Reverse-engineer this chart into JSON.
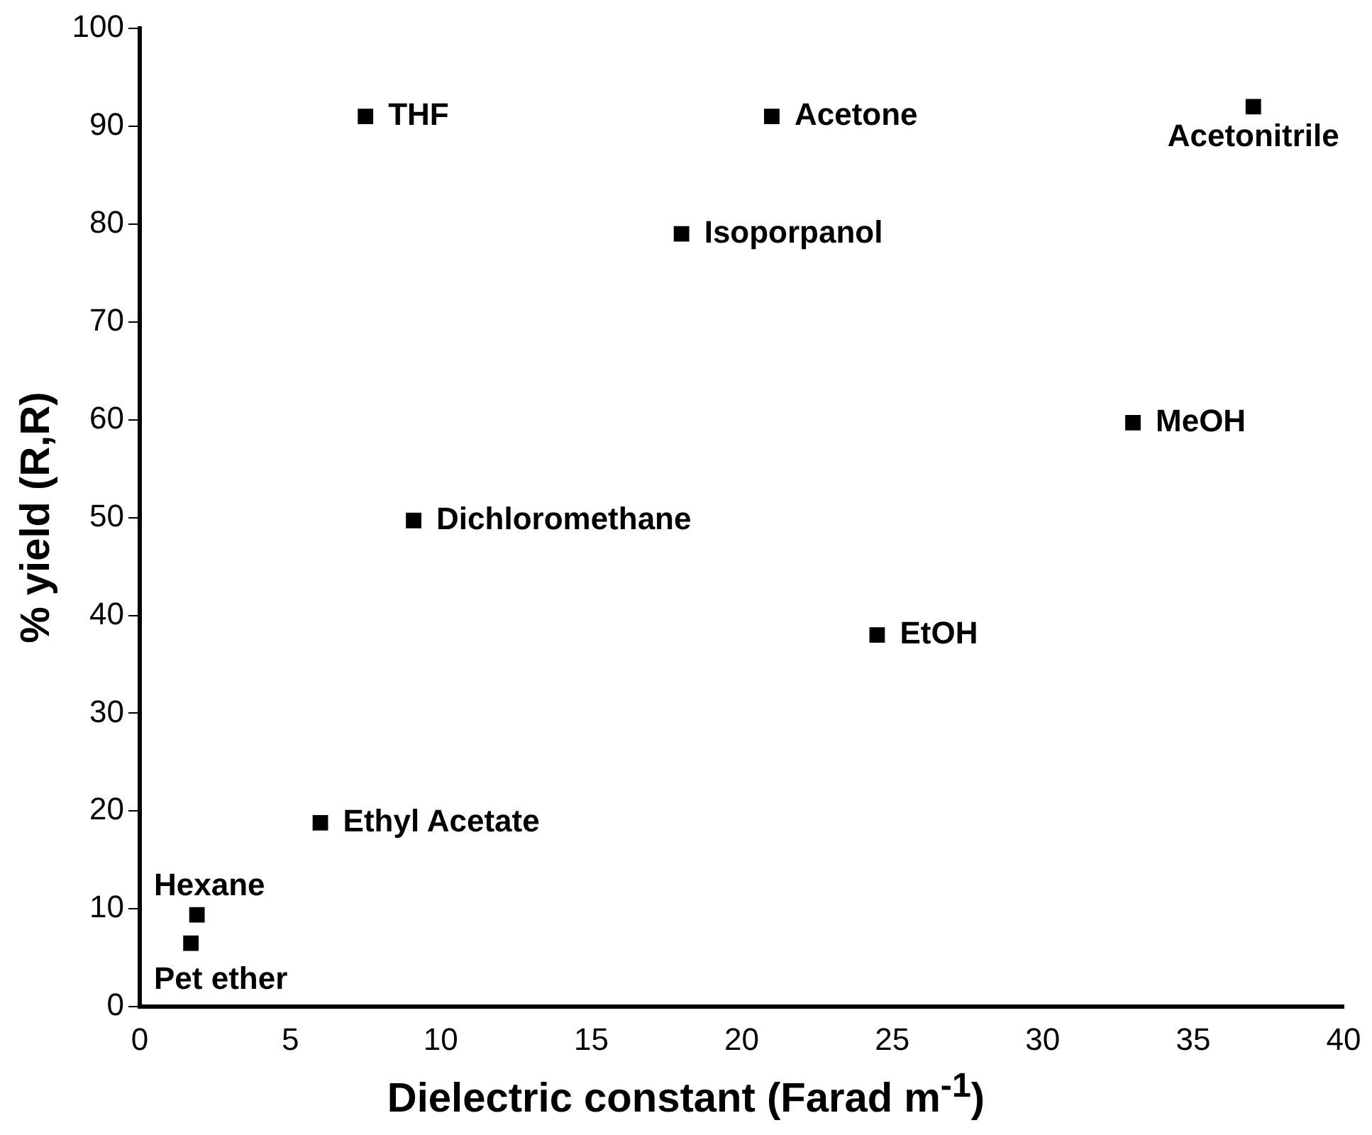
{
  "chart_data": {
    "type": "scatter",
    "xlabel": "Dielectric constant (Farad m$^{-1}$)",
    "ylabel": "% yield (R,R)",
    "series": [
      {
        "color": "#000000",
        "x": [
          7.5,
          21.0,
          37.0,
          18.0,
          33.0,
          9.1,
          24.5,
          6.0,
          1.9,
          1.7
        ],
        "values": [
          91,
          91,
          92,
          79,
          59.7,
          49.7,
          38,
          18.8,
          9.4,
          6.5
        ]
      }
    ],
    "annotations": [
      {
        "text": "THF",
        "x": 7.5,
        "y": 91
      },
      {
        "text": "Acetone",
        "x": 21.0,
        "y": 91
      },
      {
        "text": "Acetonitrile",
        "x": 37.0,
        "y": 92
      },
      {
        "text": "Isoporpanol",
        "x": 18.0,
        "y": 79
      },
      {
        "text": "MeOH",
        "x": 33.0,
        "y": 59.7
      },
      {
        "text": "Dichloromethane",
        "x": 9.1,
        "y": 49.7
      },
      {
        "text": "EtOH",
        "x": 24.5,
        "y": 38
      },
      {
        "text": "Ethyl Acetate",
        "x": 6.0,
        "y": 18.8
      },
      {
        "text": "Hexane",
        "x": 1.9,
        "y": 9.4
      },
      {
        "text": "Pet ether",
        "x": 1.7,
        "y": 6.5
      }
    ],
    "xlim": [
      0,
      40
    ],
    "xticks": [
      0,
      5,
      10,
      15,
      20,
      25,
      30,
      35,
      40
    ],
    "ylim": [
      0,
      100
    ],
    "yticks": [
      0,
      10,
      20,
      30,
      40,
      50,
      60,
      70,
      80,
      90,
      100
    ],
    "grid": false,
    "legend": false,
    "marker": "square"
  }
}
